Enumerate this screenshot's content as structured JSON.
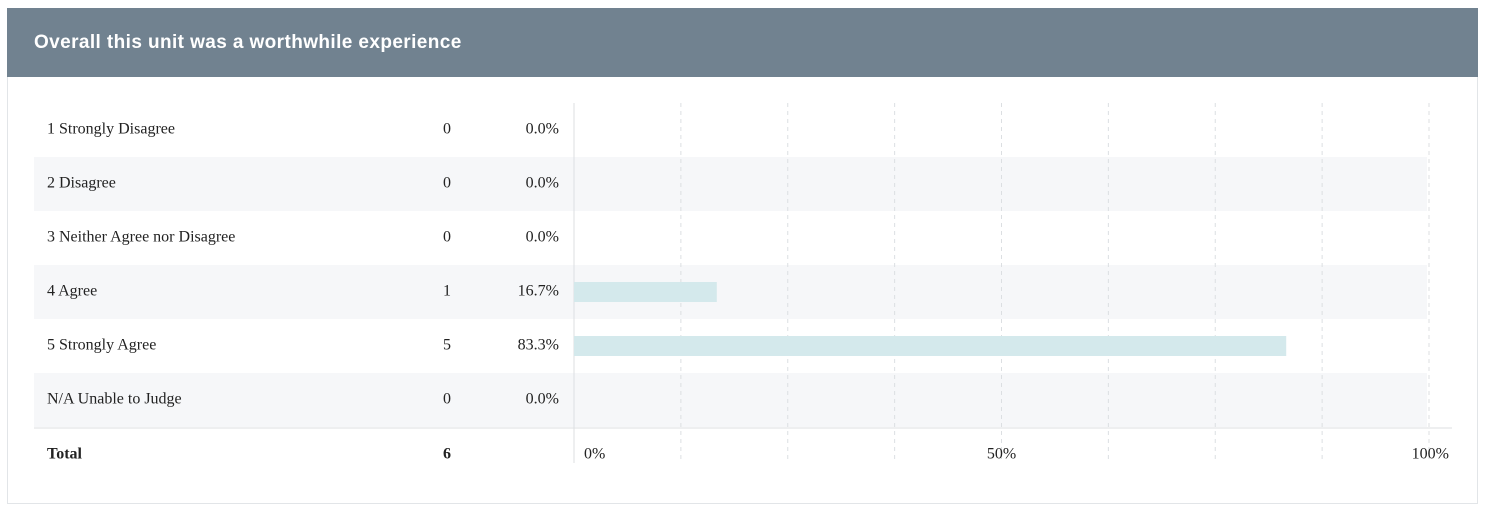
{
  "chart_data": {
    "type": "bar",
    "title": "Overall this unit was a worthwhile experience",
    "categories": [
      "1 Strongly Disagree",
      "2 Disagree",
      "3 Neither Agree nor Disagree",
      "4 Agree",
      "5 Strongly Agree",
      "N/A Unable to Judge"
    ],
    "counts": [
      0,
      0,
      0,
      1,
      5,
      0
    ],
    "values": [
      0,
      0,
      0,
      16.7,
      83.3,
      0
    ],
    "value_labels": [
      "0.0%",
      "0.0%",
      "0.0%",
      "16.7%",
      "83.3%",
      "0.0%"
    ],
    "total_label": "Total",
    "total": 6,
    "color": "#d4e9ec",
    "xlim": [
      0,
      100
    ],
    "xticks": [
      {
        "value": 0,
        "label": "0%"
      },
      {
        "value": 50,
        "label": "50%"
      },
      {
        "value": 100,
        "label": "100%"
      }
    ],
    "minor_xticks": [
      12.5,
      25,
      37.5,
      62.5,
      75,
      87.5
    ],
    "grid": true
  }
}
